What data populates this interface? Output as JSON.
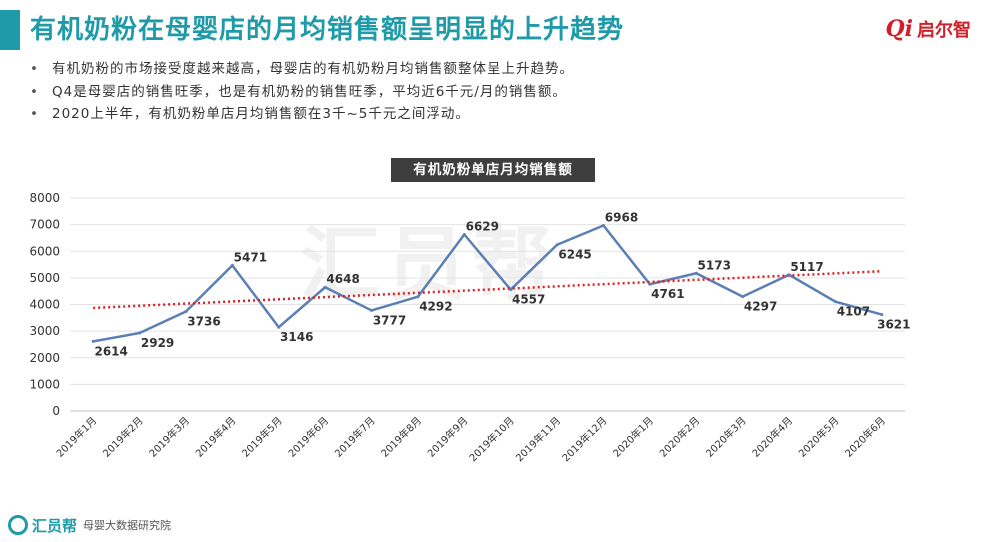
{
  "header": {
    "title": "有机奶粉在母婴店的月均销售额呈明显的上升趋势",
    "brand_mark": "Qi",
    "brand_text": "启尔智"
  },
  "bullets": [
    "有机奶粉的市场接受度越来越高，母婴店的有机奶粉月均销售额整体呈上升趋势。",
    "Q4是母婴店的销售旺季，也是有机奶粉的销售旺季，平均近6千元/月的销售额。",
    "2020上半年，有机奶粉单店月均销售额在3千~5千元之间浮动。"
  ],
  "watermark": "汇员帮",
  "footer": {
    "name": "汇员帮",
    "sub": "母婴大数据研究院"
  },
  "colors": {
    "accent": "#1f9aa9",
    "line": "#5b7fb5",
    "trend": "#e02020",
    "brand": "#d0202a"
  },
  "chart_data": {
    "type": "line",
    "title": "有机奶粉单店月均销售额",
    "categories": [
      "2019年1月",
      "2019年2月",
      "2019年3月",
      "2019年4月",
      "2019年5月",
      "2019年6月",
      "2019年7月",
      "2019年8月",
      "2019年9月",
      "2019年10月",
      "2019年11月",
      "2019年12月",
      "2020年1月",
      "2020年2月",
      "2020年3月",
      "2020年4月",
      "2020年5月",
      "2020年6月"
    ],
    "values": [
      2614,
      2929,
      3736,
      5471,
      3146,
      4648,
      3777,
      4292,
      6629,
      4557,
      6245,
      6968,
      4761,
      5173,
      4297,
      5117,
      4107,
      3621
    ],
    "data_labels": [
      "2614",
      "2929",
      "3736",
      "5471",
      "3146",
      "4648",
      "3777",
      "4292",
      "6629",
      "4557",
      "6245",
      "6968",
      "4761",
      "5173",
      "4297",
      "5117",
      "4107",
      "3621"
    ],
    "trendline": {
      "type": "linear",
      "style": "dotted"
    },
    "ylim": [
      0,
      8000
    ],
    "yticks": [
      "0",
      "1000",
      "2000",
      "3000",
      "4000",
      "5000",
      "6000",
      "7000",
      "8000"
    ],
    "grid": true,
    "xlabel": "",
    "ylabel": ""
  }
}
